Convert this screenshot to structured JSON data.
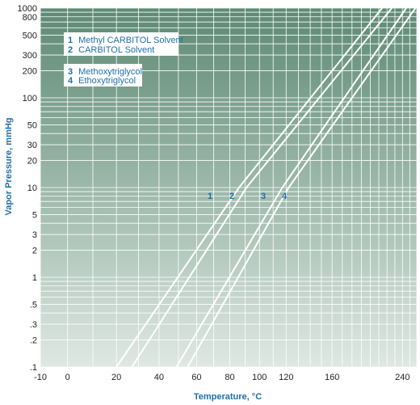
{
  "chart_data": {
    "type": "line",
    "title": "",
    "xlabel": "Temperature, °C",
    "ylabel": "Vapor Pressure, mmHg",
    "x_scale": "reciprocal",
    "y_scale": "log",
    "xlim": [
      -10,
      260
    ],
    "ylim": [
      0.1,
      1000
    ],
    "grid": true,
    "x_ticks": [
      -10,
      0,
      20,
      40,
      60,
      80,
      100,
      120,
      160,
      240
    ],
    "x_tick_labels": [
      "-10",
      "0",
      "20",
      "40",
      "60",
      "80",
      "100",
      "120",
      "160",
      "240"
    ],
    "y_ticks": [
      0.1,
      0.2,
      0.3,
      0.5,
      1,
      2,
      3,
      5,
      10,
      20,
      30,
      50,
      100,
      200,
      300,
      500,
      800,
      1000
    ],
    "y_tick_labels": [
      ".1",
      ".2",
      ".3",
      ".5",
      "1",
      "2",
      "3",
      "5",
      "10",
      "20",
      "30",
      "50",
      "100",
      "200",
      "300",
      "500",
      "800",
      "1000"
    ],
    "legend": {
      "position": "top-left",
      "entries": [
        {
          "num": "1",
          "name": "Methyl CARBITOL Solvent"
        },
        {
          "num": "2",
          "name": "CARBITOL Solvent"
        },
        {
          "num": "3",
          "name": "Methoxytriglycol"
        },
        {
          "num": "4",
          "name": "Ethoxytriglycol"
        }
      ]
    },
    "series": [
      {
        "label": "1",
        "x": [
          20,
          86,
          214
        ],
        "y": [
          0.1,
          10,
          1000
        ]
      },
      {
        "label": "2",
        "x": [
          27,
          91,
          226
        ],
        "y": [
          0.1,
          10,
          1000
        ]
      },
      {
        "label": "3",
        "x": [
          49,
          117,
          245
        ],
        "y": [
          0.1,
          10,
          1000
        ]
      },
      {
        "label": "4",
        "x": [
          55,
          122,
          258
        ],
        "y": [
          0.1,
          10,
          1000
        ]
      }
    ]
  },
  "colors": {
    "grid": "#ffffff",
    "curve": "#ffffff",
    "text": "#1f6fa8",
    "tick": "#222222",
    "bg_top": "#5e8a74",
    "bg_bottom": "#dfe8e3"
  }
}
